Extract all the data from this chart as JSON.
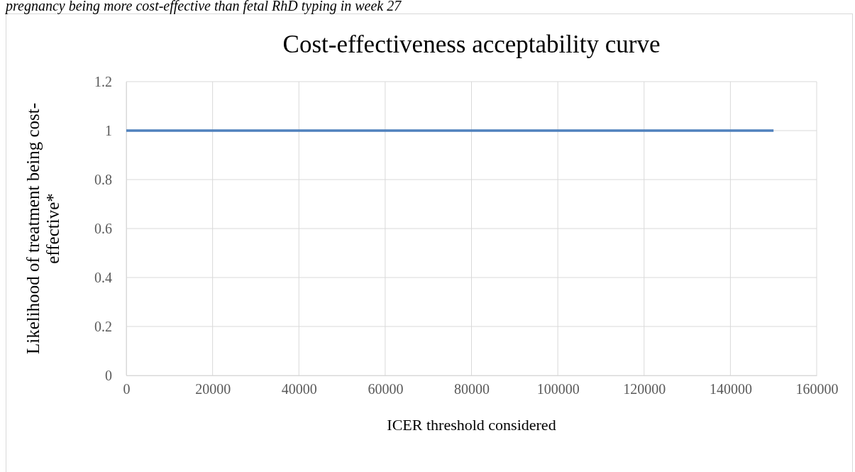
{
  "chart_data": {
    "type": "line",
    "title": "Cost-effectiveness acceptability curve",
    "xlabel": "ICER threshold considered",
    "ylabel": "Likelihood of treatment being cost-effective*",
    "annotations": [
      "pregnancy being more cost-effective than fetal RhD typing in week 27"
    ],
    "x": [
      0,
      150000
    ],
    "series": [
      {
        "color": "#4f81bd",
        "values": [
          1,
          1
        ]
      }
    ],
    "xlim": [
      0,
      160000
    ],
    "xticks": [
      0,
      20000,
      40000,
      60000,
      80000,
      100000,
      120000,
      140000,
      160000
    ],
    "ylim": [
      0,
      1.2
    ],
    "yticks": [
      0,
      0.2,
      0.4,
      0.6,
      0.8,
      1,
      1.2
    ],
    "grid": true,
    "marker": "none",
    "line_style": "solid"
  }
}
